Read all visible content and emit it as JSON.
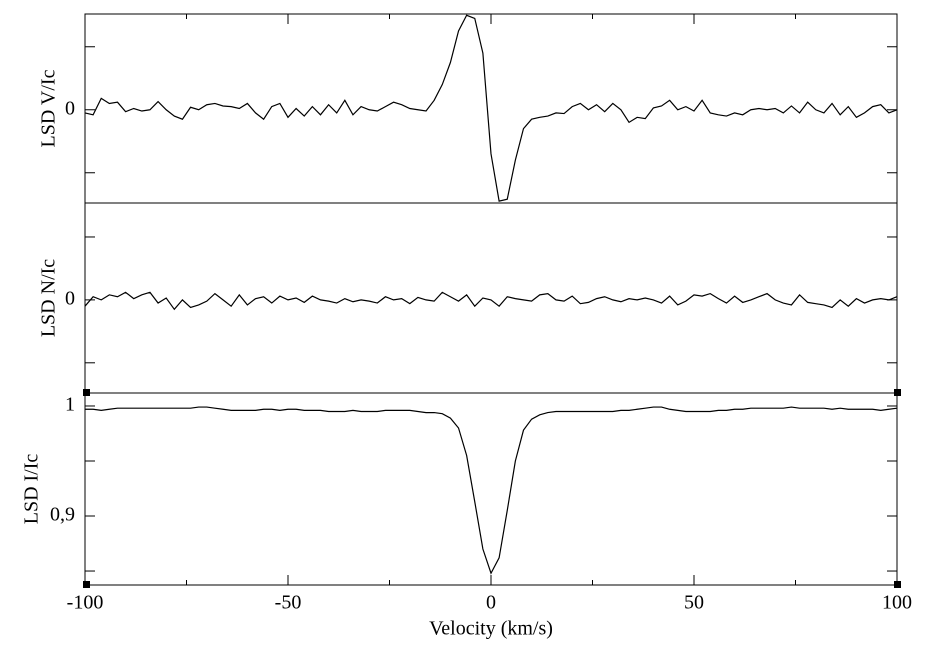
{
  "chart_data": [
    {
      "type": "line",
      "ylabel": "LSD V/Ic",
      "x": [
        -100,
        -98,
        -96,
        -94,
        -92,
        -90,
        -88,
        -86,
        -84,
        -82,
        -80,
        -78,
        -76,
        -74,
        -72,
        -70,
        -68,
        -66,
        -64,
        -62,
        -60,
        -58,
        -56,
        -54,
        -52,
        -50,
        -48,
        -46,
        -44,
        -42,
        -40,
        -38,
        -36,
        -34,
        -32,
        -30,
        -28,
        -26,
        -24,
        -22,
        -20,
        -18,
        -16,
        -14,
        -12,
        -10,
        -8,
        -6,
        -4,
        -2,
        0,
        2,
        4,
        6,
        8,
        10,
        12,
        14,
        16,
        18,
        20,
        22,
        24,
        26,
        28,
        30,
        32,
        34,
        36,
        38,
        40,
        42,
        44,
        46,
        48,
        50,
        52,
        54,
        56,
        58,
        60,
        62,
        64,
        66,
        68,
        70,
        72,
        74,
        76,
        78,
        80,
        82,
        84,
        86,
        88,
        90,
        92,
        94,
        96,
        98,
        100
      ],
      "values": [
        -0.05,
        -0.08,
        0.18,
        0.1,
        0.12,
        -0.03,
        0.02,
        -0.02,
        0.0,
        0.13,
        0.0,
        -0.1,
        -0.15,
        0.04,
        0.0,
        0.08,
        0.1,
        0.06,
        0.05,
        0.02,
        0.1,
        -0.05,
        -0.15,
        0.05,
        0.1,
        -0.12,
        0.02,
        -0.1,
        0.05,
        -0.08,
        0.08,
        -0.05,
        0.15,
        -0.08,
        0.05,
        0.0,
        -0.02,
        0.05,
        0.12,
        0.08,
        0.02,
        0.0,
        -0.02,
        0.15,
        0.4,
        0.75,
        1.25,
        1.5,
        1.45,
        0.9,
        -0.7,
        -1.45,
        -1.42,
        -0.8,
        -0.3,
        -0.15,
        -0.12,
        -0.1,
        -0.05,
        -0.06,
        0.05,
        0.1,
        0.0,
        0.08,
        -0.03,
        0.1,
        0.0,
        -0.2,
        -0.12,
        -0.14,
        0.03,
        0.06,
        0.15,
        0.0,
        0.05,
        -0.02,
        0.15,
        -0.05,
        -0.08,
        -0.1,
        -0.05,
        -0.08,
        0.0,
        0.02,
        0.0,
        0.02,
        -0.05,
        0.06,
        -0.05,
        0.12,
        0.0,
        -0.05,
        0.1,
        -0.08,
        0.05,
        -0.12,
        -0.05,
        0.05,
        0.08,
        -0.05,
        0.0
      ],
      "color": "#000000",
      "xlim": [
        -100,
        100
      ],
      "ylim": [
        -1.48,
        1.52
      ],
      "yticks": [
        0
      ],
      "yminor_ticks": [
        -1,
        1
      ]
    },
    {
      "type": "line",
      "ylabel": "LSD N/Ic",
      "x": [
        -100,
        -98,
        -96,
        -94,
        -92,
        -90,
        -88,
        -86,
        -84,
        -82,
        -80,
        -78,
        -76,
        -74,
        -72,
        -70,
        -68,
        -66,
        -64,
        -62,
        -60,
        -58,
        -56,
        -54,
        -52,
        -50,
        -48,
        -46,
        -44,
        -42,
        -40,
        -38,
        -36,
        -34,
        -32,
        -30,
        -28,
        -26,
        -24,
        -22,
        -20,
        -18,
        -16,
        -14,
        -12,
        -10,
        -8,
        -6,
        -4,
        -2,
        0,
        2,
        4,
        6,
        8,
        10,
        12,
        14,
        16,
        18,
        20,
        22,
        24,
        26,
        28,
        30,
        32,
        34,
        36,
        38,
        40,
        42,
        44,
        46,
        48,
        50,
        52,
        54,
        56,
        58,
        60,
        62,
        64,
        66,
        68,
        70,
        72,
        74,
        76,
        78,
        80,
        82,
        84,
        86,
        88,
        90,
        92,
        94,
        96,
        98,
        100
      ],
      "values": [
        -0.1,
        0.05,
        0.0,
        0.08,
        0.05,
        0.12,
        0.02,
        0.08,
        0.12,
        -0.05,
        0.03,
        -0.15,
        0.0,
        -0.12,
        -0.08,
        -0.02,
        0.1,
        0.0,
        -0.1,
        0.08,
        -0.08,
        0.02,
        0.05,
        -0.05,
        0.06,
        0.0,
        0.03,
        -0.04,
        0.06,
        0.0,
        -0.02,
        -0.05,
        0.02,
        -0.03,
        0.0,
        -0.02,
        -0.05,
        0.05,
        0.0,
        0.02,
        -0.06,
        0.04,
        0.0,
        -0.02,
        0.12,
        0.05,
        -0.02,
        0.08,
        -0.1,
        0.03,
        0.0,
        -0.1,
        0.05,
        0.02,
        0.0,
        -0.02,
        0.08,
        0.1,
        0.0,
        -0.02,
        0.06,
        -0.06,
        -0.04,
        0.02,
        0.05,
        0.0,
        -0.03,
        0.02,
        0.0,
        0.03,
        0.0,
        -0.05,
        0.06,
        -0.08,
        -0.02,
        0.08,
        0.06,
        0.1,
        0.02,
        -0.05,
        0.06,
        -0.04,
        0.0,
        0.05,
        0.1,
        0.0,
        -0.05,
        -0.08,
        0.08,
        -0.04,
        -0.06,
        -0.08,
        -0.12,
        0.0,
        -0.1,
        0.02,
        -0.05,
        0.0,
        0.02,
        0.0,
        0.05
      ],
      "color": "#000000",
      "xlim": [
        -100,
        100
      ],
      "ylim": [
        -1.48,
        1.54
      ],
      "yticks": [
        0
      ],
      "yminor_ticks": [
        -1,
        1
      ]
    },
    {
      "type": "line",
      "ylabel": "LSD I/Ic",
      "xlabel": "Velocity (km/s)",
      "x": [
        -100,
        -98,
        -96,
        -94,
        -92,
        -90,
        -88,
        -86,
        -84,
        -82,
        -80,
        -78,
        -76,
        -74,
        -72,
        -70,
        -68,
        -66,
        -64,
        -62,
        -60,
        -58,
        -56,
        -54,
        -52,
        -50,
        -48,
        -46,
        -44,
        -42,
        -40,
        -38,
        -36,
        -34,
        -32,
        -30,
        -28,
        -26,
        -24,
        -22,
        -20,
        -18,
        -16,
        -14,
        -12,
        -10,
        -8,
        -6,
        -4,
        -2,
        0,
        2,
        4,
        6,
        8,
        10,
        12,
        14,
        16,
        18,
        20,
        22,
        24,
        26,
        28,
        30,
        32,
        34,
        36,
        38,
        40,
        42,
        44,
        46,
        48,
        50,
        52,
        54,
        56,
        58,
        60,
        62,
        64,
        66,
        68,
        70,
        72,
        74,
        76,
        78,
        80,
        82,
        84,
        86,
        88,
        90,
        92,
        94,
        96,
        98,
        100
      ],
      "values": [
        0.997,
        0.997,
        0.996,
        0.997,
        0.998,
        0.998,
        0.998,
        0.998,
        0.998,
        0.998,
        0.998,
        0.998,
        0.998,
        0.998,
        0.999,
        0.999,
        0.998,
        0.997,
        0.996,
        0.996,
        0.996,
        0.996,
        0.997,
        0.997,
        0.996,
        0.997,
        0.997,
        0.996,
        0.996,
        0.996,
        0.995,
        0.995,
        0.995,
        0.996,
        0.995,
        0.995,
        0.995,
        0.996,
        0.996,
        0.996,
        0.996,
        0.995,
        0.994,
        0.994,
        0.993,
        0.989,
        0.98,
        0.955,
        0.913,
        0.87,
        0.848,
        0.862,
        0.905,
        0.95,
        0.978,
        0.988,
        0.992,
        0.994,
        0.995,
        0.995,
        0.995,
        0.995,
        0.995,
        0.995,
        0.995,
        0.995,
        0.996,
        0.996,
        0.997,
        0.998,
        0.999,
        0.999,
        0.997,
        0.996,
        0.995,
        0.995,
        0.995,
        0.995,
        0.996,
        0.996,
        0.997,
        0.997,
        0.998,
        0.998,
        0.998,
        0.998,
        0.998,
        0.999,
        0.998,
        0.998,
        0.998,
        0.998,
        0.997,
        0.998,
        0.997,
        0.997,
        0.997,
        0.997,
        0.996,
        0.997,
        0.998
      ],
      "color": "#000000",
      "xlim": [
        -100,
        100
      ],
      "ylim": [
        0.8373,
        1.0118
      ],
      "yticks": [
        1,
        {
          "value": 0.9,
          "label": "0,9"
        }
      ],
      "yminor_ticks": [
        0.95,
        0.85
      ],
      "xticks": [
        -100,
        -50,
        0,
        50,
        100
      ],
      "xminor_ticks": [
        -75,
        -25,
        25,
        75
      ]
    }
  ]
}
